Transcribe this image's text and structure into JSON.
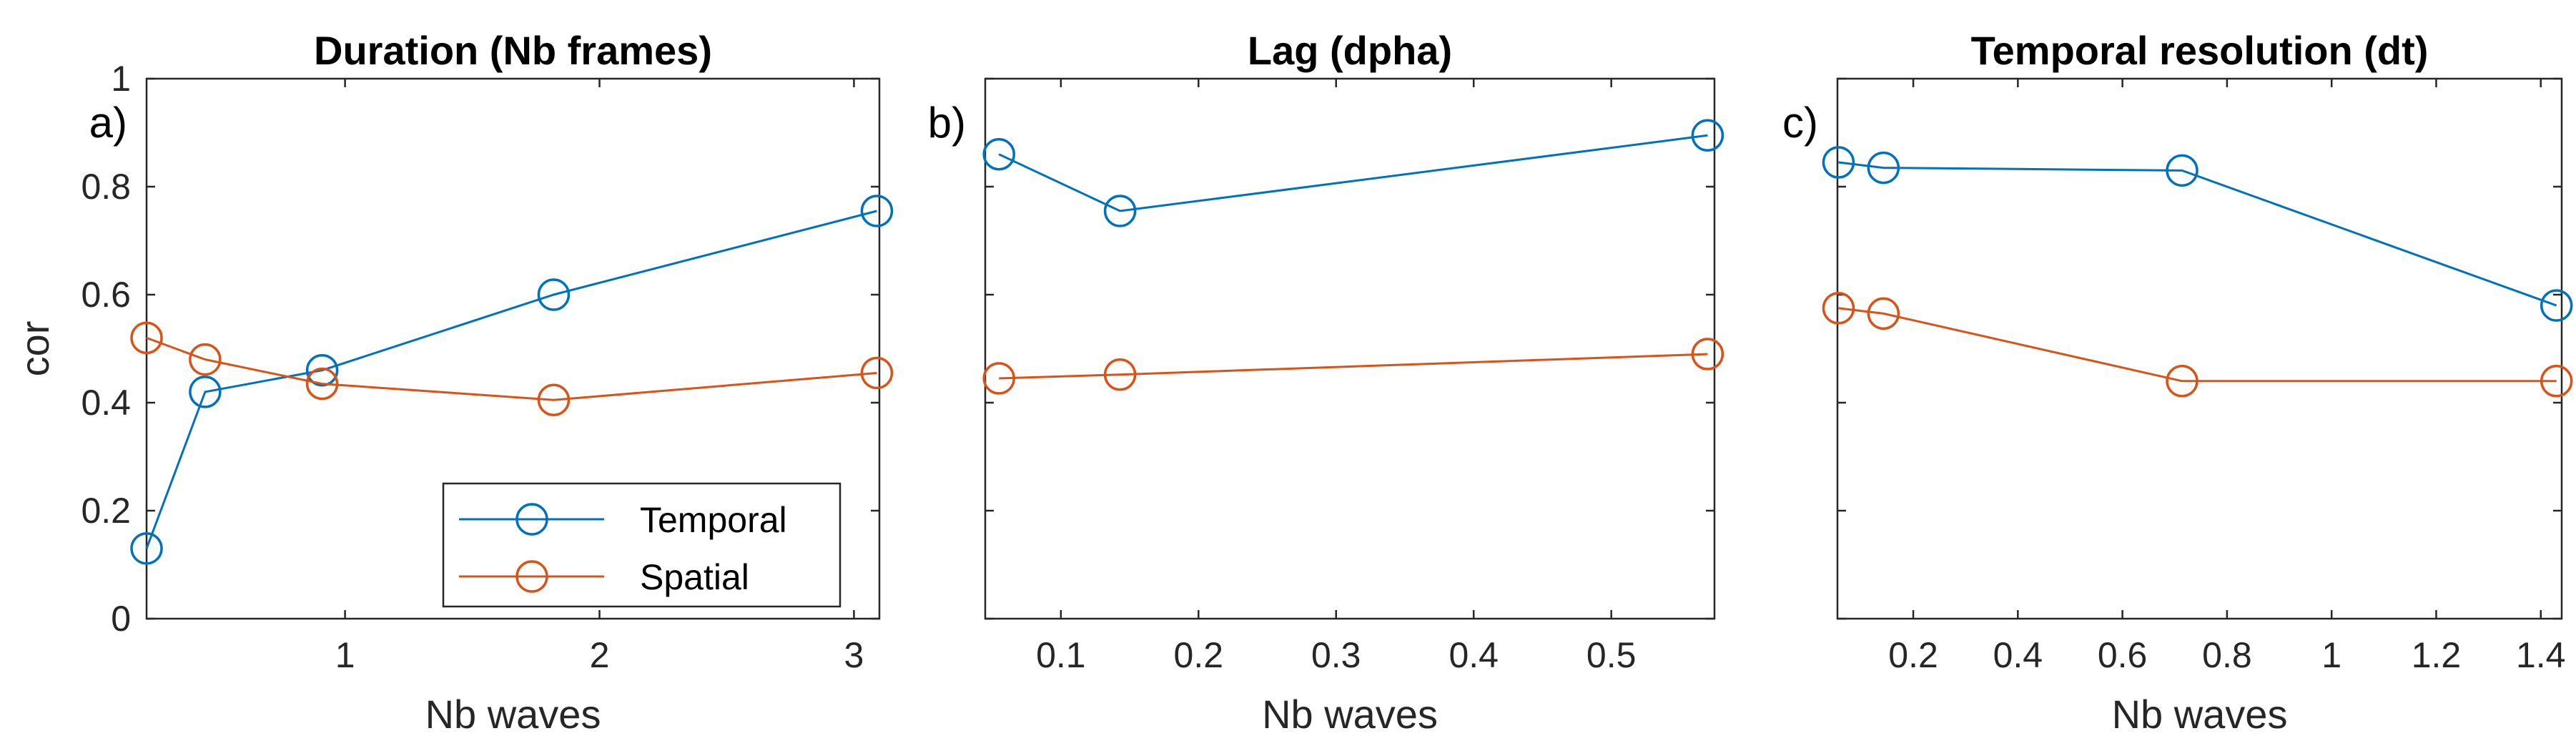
{
  "figure": {
    "series_names": [
      "Temporal",
      "Spatial"
    ],
    "colors": {
      "Temporal": "#0072BD",
      "Spatial": "#D95319",
      "axis": "#262626"
    }
  },
  "chart_data": [
    {
      "type": "line",
      "panel_label": "a)",
      "title": "Duration (Nb frames)",
      "xlabel": "Nb waves",
      "ylabel": "cor",
      "xlim": [
        0.22,
        3.1
      ],
      "ylim": [
        0,
        1
      ],
      "xticks": [
        1,
        2,
        3
      ],
      "xtick_labels": [
        "1",
        "2",
        "3"
      ],
      "yticks": [
        0,
        0.2,
        0.4,
        0.6,
        0.8,
        1
      ],
      "ytick_labels": [
        "0",
        "0.2",
        "0.4",
        "0.6",
        "0.8",
        "1"
      ],
      "show_ytick_labels": true,
      "legend": {
        "entries": [
          "Temporal",
          "Spatial"
        ],
        "location": "bottom-right"
      },
      "series": [
        {
          "name": "Temporal",
          "x": [
            0.22,
            0.45,
            0.91,
            1.82,
            3.09
          ],
          "y": [
            0.13,
            0.42,
            0.46,
            0.6,
            0.755
          ]
        },
        {
          "name": "Spatial",
          "x": [
            0.22,
            0.45,
            0.91,
            1.82,
            3.09
          ],
          "y": [
            0.52,
            0.48,
            0.435,
            0.405,
            0.455
          ]
        }
      ]
    },
    {
      "type": "line",
      "panel_label": "b)",
      "title": "Lag (dpha)",
      "xlabel": "Nb waves",
      "ylabel": "",
      "xlim": [
        0.045,
        0.575
      ],
      "ylim": [
        0,
        1
      ],
      "xticks": [
        0.1,
        0.2,
        0.3,
        0.4,
        0.5
      ],
      "xtick_labels": [
        "0.1",
        "0.2",
        "0.3",
        "0.4",
        "0.5"
      ],
      "yticks": [
        0,
        0.2,
        0.4,
        0.6,
        0.8,
        1
      ],
      "ytick_labels": [
        "",
        "",
        "",
        "",
        "",
        ""
      ],
      "show_ytick_labels": false,
      "series": [
        {
          "name": "Temporal",
          "x": [
            0.055,
            0.143,
            0.57
          ],
          "y": [
            0.86,
            0.755,
            0.895
          ]
        },
        {
          "name": "Spatial",
          "x": [
            0.055,
            0.143,
            0.57
          ],
          "y": [
            0.445,
            0.452,
            0.49
          ]
        }
      ]
    },
    {
      "type": "line",
      "panel_label": "c)",
      "title": "Temporal resolution (dt)",
      "xlabel": "Nb waves",
      "ylabel": "",
      "xlim": [
        0.055,
        1.44
      ],
      "ylim": [
        0,
        1
      ],
      "xticks": [
        0.2,
        0.4,
        0.6,
        0.8,
        1,
        1.2,
        1.4
      ],
      "xtick_labels": [
        "0.2",
        "0.4",
        "0.6",
        "0.8",
        "1",
        "1.2",
        "1.4"
      ],
      "yticks": [
        0,
        0.2,
        0.4,
        0.6,
        0.8,
        1
      ],
      "ytick_labels": [
        "",
        "",
        "",
        "",
        "",
        ""
      ],
      "show_ytick_labels": false,
      "series": [
        {
          "name": "Temporal",
          "x": [
            0.057,
            0.143,
            0.714,
            1.43
          ],
          "y": [
            0.845,
            0.835,
            0.83,
            0.58
          ]
        },
        {
          "name": "Spatial",
          "x": [
            0.057,
            0.143,
            0.714,
            1.43
          ],
          "y": [
            0.575,
            0.565,
            0.44,
            0.44
          ]
        }
      ]
    }
  ]
}
